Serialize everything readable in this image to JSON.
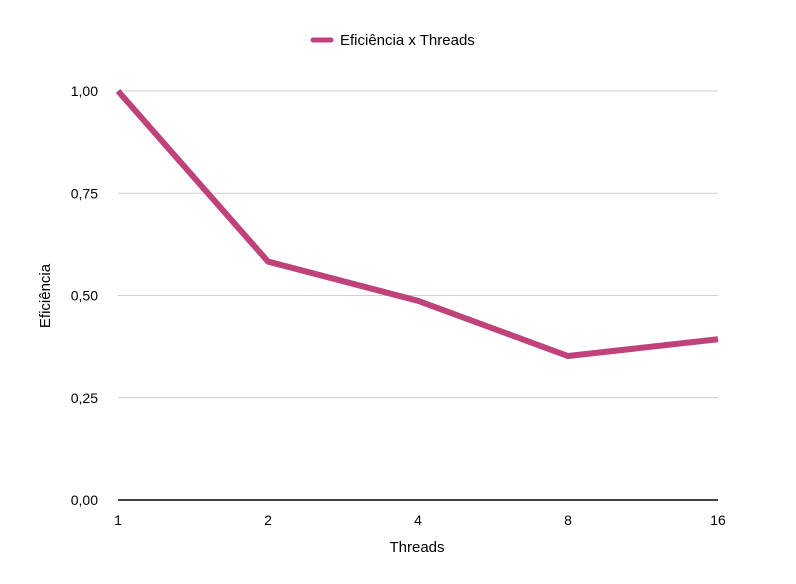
{
  "chart_data": {
    "type": "line",
    "categories": [
      "1",
      "2",
      "4",
      "8",
      "16"
    ],
    "series": [
      {
        "name": "Eficiência x Threads",
        "color": "#c0427b",
        "values": [
          1.0,
          0.583,
          0.487,
          0.352,
          0.393
        ]
      }
    ],
    "xlabel": "Threads",
    "ylabel": "Eficiência",
    "ylim": [
      0,
      1
    ],
    "yticks": [
      0,
      0.25,
      0.5,
      0.75,
      1
    ],
    "ytick_labels": [
      "0,00",
      "0,25",
      "0,50",
      "0,75",
      "1,00"
    ],
    "grid": true,
    "legend_position": "top-center"
  }
}
